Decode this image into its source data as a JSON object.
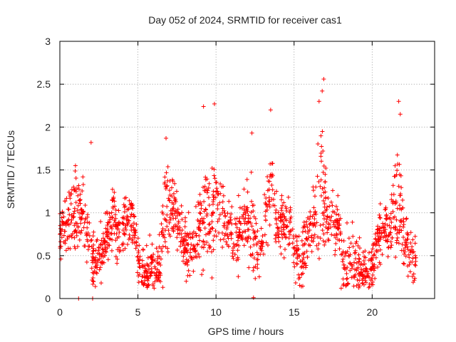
{
  "chart_data": {
    "type": "scatter",
    "title": "Day 052 of 2024, SRMTID for receiver cas1",
    "xlabel": "GPS time / hours",
    "ylabel": "SRMTID / TECUs",
    "xlim": [
      0,
      24
    ],
    "ylim": [
      0,
      3
    ],
    "xticks": [
      0,
      5,
      10,
      15,
      20
    ],
    "xtick_labels": [
      "0",
      "5",
      "10",
      "15",
      "20"
    ],
    "yticks": [
      0,
      0.5,
      1,
      1.5,
      2,
      2.5,
      3
    ],
    "ytick_labels": [
      "0",
      "0.5",
      "1",
      "1.5",
      "2",
      "2.5",
      "3"
    ],
    "grid": true,
    "marker": "+",
    "color": "#ff0000",
    "time_range_hours": [
      0,
      22.8
    ],
    "notable_points": [
      {
        "x": 2.0,
        "y": 1.82
      },
      {
        "x": 9.2,
        "y": 2.24
      },
      {
        "x": 9.9,
        "y": 2.27
      },
      {
        "x": 13.5,
        "y": 2.2
      },
      {
        "x": 16.9,
        "y": 2.56
      },
      {
        "x": 16.8,
        "y": 2.42
      },
      {
        "x": 16.6,
        "y": 2.3
      },
      {
        "x": 21.7,
        "y": 2.3
      },
      {
        "x": 21.8,
        "y": 2.15
      },
      {
        "x": 6.8,
        "y": 1.87
      },
      {
        "x": 12.3,
        "y": 1.93
      },
      {
        "x": 1.0,
        "y": 1.55
      },
      {
        "x": 1.2,
        "y": 0.0
      },
      {
        "x": 2.1,
        "y": 0.0
      },
      {
        "x": 12.4,
        "y": 0.01
      }
    ],
    "activity_windows": [
      {
        "center": 1.0,
        "width": 0.4,
        "amplitude": 0.55
      },
      {
        "center": 3.4,
        "width": 0.35,
        "amplitude": 0.4
      },
      {
        "center": 6.8,
        "width": 0.3,
        "amplitude": 0.75
      },
      {
        "center": 9.3,
        "width": 0.4,
        "amplitude": 0.95
      },
      {
        "center": 9.9,
        "width": 0.35,
        "amplitude": 0.85
      },
      {
        "center": 12.2,
        "width": 0.4,
        "amplitude": 0.7
      },
      {
        "center": 13.5,
        "width": 0.4,
        "amplitude": 0.85
      },
      {
        "center": 15.9,
        "width": 0.3,
        "amplitude": 0.55
      },
      {
        "center": 16.7,
        "width": 0.35,
        "amplitude": 1.25
      },
      {
        "center": 18.6,
        "width": 0.3,
        "amplitude": 0.5
      },
      {
        "center": 21.6,
        "width": 0.35,
        "amplitude": 0.95
      }
    ]
  }
}
